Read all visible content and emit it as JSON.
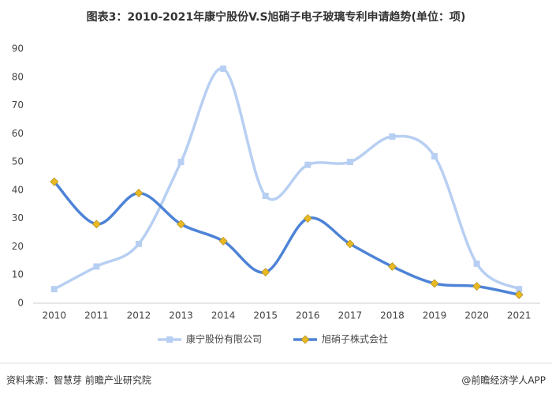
{
  "chart_data": {
    "type": "line",
    "title": "图表3：2010-2021年康宁股份V.S旭硝子电子玻璃专利申请趋势(单位：项)",
    "categories": [
      "2010",
      "2011",
      "2012",
      "2013",
      "2014",
      "2015",
      "2016",
      "2017",
      "2018",
      "2019",
      "2020",
      "2021"
    ],
    "series": [
      {
        "name": "康宁股份有限公司",
        "color": "#b7cff2",
        "marker": "square",
        "marker_color": "#b7cff2",
        "values": [
          5,
          13,
          21,
          50,
          83,
          38,
          49,
          50,
          59,
          52,
          14,
          5
        ]
      },
      {
        "name": "旭硝子株式会社",
        "color": "#4d83d6",
        "marker": "diamond",
        "marker_color": "#e8b923",
        "values": [
          43,
          28,
          39,
          28,
          22,
          11,
          30,
          21,
          13,
          7,
          6,
          3
        ]
      }
    ],
    "ylim": [
      0,
      90
    ],
    "yticks": [
      0,
      10,
      20,
      30,
      40,
      50,
      60,
      70,
      80,
      90
    ],
    "grid": false,
    "smooth": true,
    "legend": "bottom",
    "source": "资料来源：智慧芽 前瞻产业研究院",
    "credit": "@前瞻经济学人APP"
  }
}
